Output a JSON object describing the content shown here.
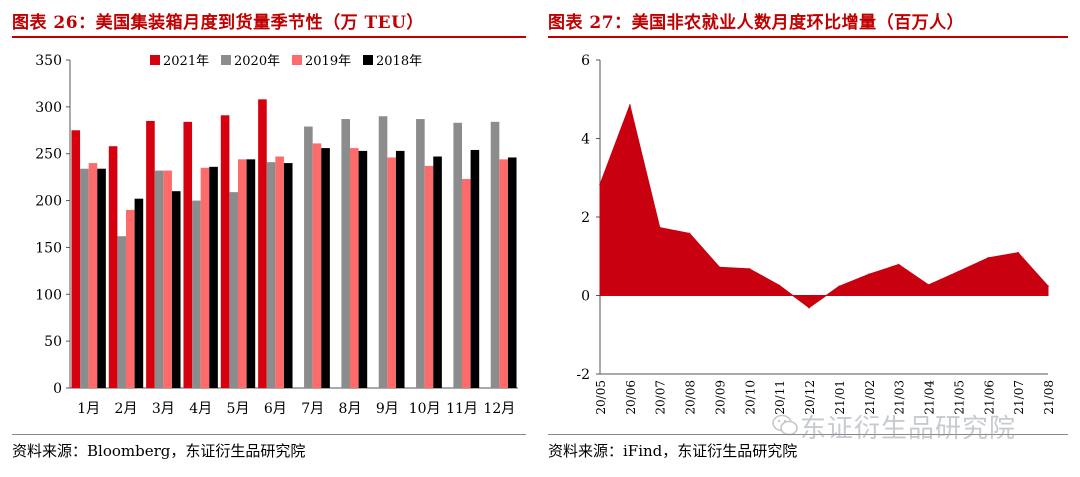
{
  "left": {
    "title": "图表 26：美国集装箱月度到货量季节性（万 TEU）",
    "source": "资料来源：Bloomberg，东证衍生品研究院"
  },
  "right": {
    "title": "图表 27：美国非农就业人数月度环比增量（百万人）",
    "source": "资料来源：iFind，东证衍生品研究院"
  },
  "watermark": "东证衍生品研究院",
  "chart_data": [
    {
      "type": "bar",
      "categories": [
        "1月",
        "2月",
        "3月",
        "4月",
        "5月",
        "6月",
        "7月",
        "8月",
        "9月",
        "10月",
        "11月",
        "12月"
      ],
      "ylim": [
        0,
        350
      ],
      "yticks": [
        0,
        50,
        100,
        150,
        200,
        250,
        300,
        350
      ],
      "legend_position": "top",
      "series": [
        {
          "name": "2021年",
          "color": "#d7000f",
          "values": [
            275,
            258,
            285,
            284,
            291,
            308,
            null,
            null,
            null,
            null,
            null,
            null
          ]
        },
        {
          "name": "2020年",
          "color": "#8c8c8c",
          "values": [
            234,
            162,
            232,
            200,
            209,
            241,
            279,
            287,
            290,
            287,
            283,
            284
          ]
        },
        {
          "name": "2019年",
          "color": "#ff6b6b",
          "values": [
            240,
            190,
            232,
            235,
            244,
            247,
            261,
            256,
            246,
            237,
            223,
            244
          ]
        },
        {
          "name": "2018年",
          "color": "#000000",
          "values": [
            234,
            202,
            210,
            236,
            244,
            240,
            256,
            253,
            253,
            247,
            254,
            246
          ]
        }
      ]
    },
    {
      "type": "area",
      "color": "#c8000f",
      "x": [
        "20/05",
        "20/06",
        "20/07",
        "20/08",
        "20/09",
        "20/10",
        "20/11",
        "20/12",
        "21/01",
        "21/02",
        "21/03",
        "21/04",
        "21/05",
        "21/06",
        "21/07",
        "21/08"
      ],
      "values": [
        2.83,
        4.85,
        1.73,
        1.58,
        0.72,
        0.68,
        0.26,
        -0.31,
        0.23,
        0.54,
        0.79,
        0.27,
        0.61,
        0.96,
        1.09,
        0.24
      ],
      "ylim": [
        -2,
        6
      ],
      "yticks": [
        -2,
        0,
        2,
        4,
        6
      ]
    }
  ]
}
